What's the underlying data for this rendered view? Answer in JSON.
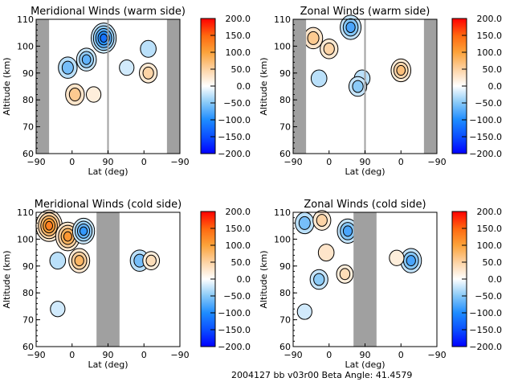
{
  "figure": {
    "footer": "2004127 bb v03r00   Beta Angle: 41.4579"
  },
  "colorbar": {
    "ticks": [
      "200.0",
      "150.0",
      "100.0",
      "50.0",
      "0.0",
      "−50.0",
      "−100.0",
      "−150.0",
      "−200.0"
    ],
    "range": [
      -200,
      200
    ],
    "colors": [
      "#0000ff",
      "#0a64ff",
      "#3aa0f0",
      "#c8e6fa",
      "#ffffff",
      "#fde0c0",
      "#fbb15a",
      "#ff8c00",
      "#ff4400",
      "#ff0000"
    ]
  },
  "chart_data": [
    {
      "type": "heatmap",
      "subtype": "filled-contour",
      "title": "Meridional Winds (warm side)",
      "xlabel": "Lat (deg)",
      "ylabel": "Altitude (km)",
      "xticks": [
        "−90",
        "0",
        "90",
        "0",
        "−90"
      ],
      "yticks": [
        "60",
        "70",
        "80",
        "90",
        "100",
        "110"
      ],
      "ylim": [
        60,
        110
      ],
      "x_axis": "two hemispheres: -90..90 then 90..-90",
      "gaps": [
        [
          0,
          0.09
        ],
        [
          0.91,
          1.0
        ]
      ],
      "features": [
        {
          "x": 0.47,
          "y": 103,
          "value": -120
        },
        {
          "x": 0.35,
          "y": 95,
          "value": -70
        },
        {
          "x": 0.22,
          "y": 92,
          "value": -60
        },
        {
          "x": 0.27,
          "y": 82,
          "value": 60
        },
        {
          "x": 0.4,
          "y": 82,
          "value": 20
        },
        {
          "x": 0.78,
          "y": 90,
          "value": 50
        },
        {
          "x": 0.78,
          "y": 99,
          "value": -30
        },
        {
          "x": 0.63,
          "y": 92,
          "value": -20
        }
      ]
    },
    {
      "type": "heatmap",
      "subtype": "filled-contour",
      "title": "Zonal Winds (warm side)",
      "xlabel": "Lat (deg)",
      "ylabel": "Altitude (km)",
      "xticks": [
        "−90",
        "0",
        "90",
        "0",
        "−90"
      ],
      "yticks": [
        "60",
        "70",
        "80",
        "90",
        "100",
        "110"
      ],
      "ylim": [
        60,
        110
      ],
      "gaps": [
        [
          0,
          0.09
        ],
        [
          0.91,
          1.0
        ]
      ],
      "features": [
        {
          "x": 0.14,
          "y": 103,
          "value": 60
        },
        {
          "x": 0.25,
          "y": 99,
          "value": 50
        },
        {
          "x": 0.4,
          "y": 107,
          "value": -80
        },
        {
          "x": 0.48,
          "y": 88,
          "value": -30
        },
        {
          "x": 0.45,
          "y": 85,
          "value": -50
        },
        {
          "x": 0.18,
          "y": 88,
          "value": -30
        },
        {
          "x": 0.75,
          "y": 91,
          "value": 70
        }
      ]
    },
    {
      "type": "heatmap",
      "subtype": "filled-contour",
      "title": "Meridional Winds (cold side)",
      "xlabel": "Lat (deg)",
      "ylabel": "Altitude (km)",
      "xticks": [
        "−90",
        "0",
        "90",
        "0",
        "−90"
      ],
      "yticks": [
        "60",
        "70",
        "80",
        "90",
        "100",
        "110"
      ],
      "ylim": [
        60,
        110
      ],
      "gaps": [
        [
          0.42,
          0.58
        ]
      ],
      "features": [
        {
          "x": 0.09,
          "y": 105,
          "value": 130
        },
        {
          "x": 0.22,
          "y": 101,
          "value": 110
        },
        {
          "x": 0.3,
          "y": 92,
          "value": 80
        },
        {
          "x": 0.33,
          "y": 103,
          "value": -90
        },
        {
          "x": 0.15,
          "y": 92,
          "value": -30
        },
        {
          "x": 0.72,
          "y": 92,
          "value": -60
        },
        {
          "x": 0.8,
          "y": 92,
          "value": 40
        },
        {
          "x": 0.15,
          "y": 74,
          "value": -20
        }
      ]
    },
    {
      "type": "heatmap",
      "subtype": "filled-contour",
      "title": "Zonal Winds (cold side)",
      "xlabel": "Lat (deg)",
      "ylabel": "Altitude (km)",
      "xticks": [
        "−90",
        "0",
        "90",
        "0",
        "−90"
      ],
      "yticks": [
        "60",
        "70",
        "80",
        "90",
        "100",
        "110"
      ],
      "ylim": [
        60,
        110
      ],
      "gaps": [
        [
          0.42,
          0.58
        ]
      ],
      "features": [
        {
          "x": 0.08,
          "y": 106,
          "value": -60
        },
        {
          "x": 0.2,
          "y": 107,
          "value": 50
        },
        {
          "x": 0.38,
          "y": 103,
          "value": -80
        },
        {
          "x": 0.23,
          "y": 95,
          "value": 30
        },
        {
          "x": 0.36,
          "y": 87,
          "value": 40
        },
        {
          "x": 0.18,
          "y": 85,
          "value": -50
        },
        {
          "x": 0.82,
          "y": 92,
          "value": -80
        },
        {
          "x": 0.72,
          "y": 93,
          "value": 20
        },
        {
          "x": 0.08,
          "y": 73,
          "value": -20
        }
      ]
    }
  ]
}
